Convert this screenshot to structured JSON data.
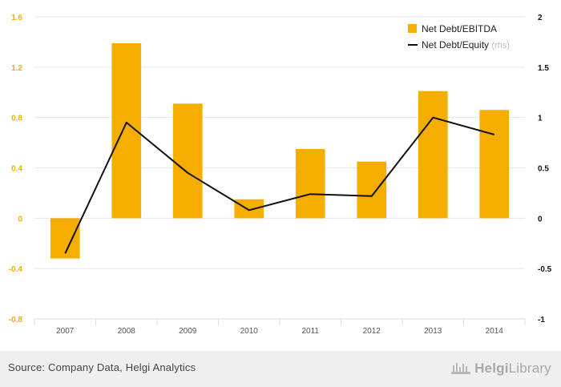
{
  "chart_data": {
    "type": "bar",
    "categories": [
      "2007",
      "2008",
      "2009",
      "2010",
      "2011",
      "2012",
      "2013",
      "2014"
    ],
    "series": [
      {
        "name": "Net Debt/EBITDA",
        "type": "bar",
        "axis": "left",
        "color": "#f5ae00",
        "values": [
          -0.32,
          1.39,
          0.91,
          0.15,
          0.55,
          0.45,
          1.01,
          0.86
        ]
      },
      {
        "name": "Net Debt/Equity",
        "name_suffix": "(rhs)",
        "type": "line",
        "axis": "right",
        "color": "#111111",
        "values": [
          -0.35,
          0.95,
          0.45,
          0.08,
          0.24,
          0.22,
          1.0,
          0.83
        ]
      }
    ],
    "y_left": {
      "min": -0.8,
      "max": 1.6,
      "ticks": [
        "-0.8",
        "-0.4",
        "0",
        "0.4",
        "0.8",
        "1.2",
        "1.6"
      ],
      "tick_color": "#f5ae00"
    },
    "y_right": {
      "min": -1,
      "max": 2,
      "ticks": [
        "-1",
        "-0.5",
        "0",
        "0.5",
        "1",
        "1.5",
        "2"
      ]
    },
    "grid": true,
    "legend_position": "top-right"
  },
  "footer": {
    "source": "Source: Company Data, Helgi Analytics",
    "logo_bold": "Helgi",
    "logo_light": "Library"
  }
}
